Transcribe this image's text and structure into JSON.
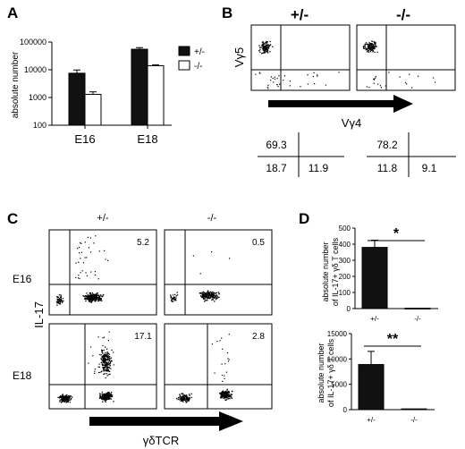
{
  "panels": {
    "a": "A",
    "b": "B",
    "c": "C",
    "d": "D"
  },
  "panel_a": {
    "ylabel": "absolute number",
    "yticks": [
      "100",
      "1000",
      "10000",
      "100000"
    ],
    "legend": [
      "+/-",
      "-/-"
    ]
  },
  "panel_b": {
    "genotypes": [
      "+/-",
      "-/-"
    ],
    "ylabel": "Vγ5",
    "xlabel": "Vγ4",
    "quadrants": [
      {
        "top_left": "69.3",
        "bottom_left": "18.7",
        "bottom_right": "11.9"
      },
      {
        "top_left": "78.2",
        "bottom_left": "11.8",
        "bottom_right": "9.1"
      }
    ]
  },
  "panel_c": {
    "genotypes": [
      "+/-",
      "-/-"
    ],
    "rows": [
      "E16",
      "E18"
    ],
    "ylabel": "IL-17",
    "xlabel": "γδTCR",
    "percentages": [
      [
        "5.2",
        "0.5"
      ],
      [
        "17.1",
        "2.8"
      ]
    ]
  },
  "panel_d": {
    "ylabel_line1": "absolute number",
    "ylabel_line2": "of IL-17+ γδ T cells",
    "top": {
      "yticks": [
        "0",
        "100",
        "200",
        "300",
        "400",
        "500"
      ],
      "signif": "*"
    },
    "bottom": {
      "yticks": [
        "0",
        "5000",
        "10000",
        "15000"
      ],
      "signif": "**"
    },
    "xticks": [
      "+/-",
      "-/-"
    ]
  },
  "colors": {
    "bar_het": "#111111",
    "bar_ko": "#ffffff",
    "axis": "#000000"
  },
  "chart_data": [
    {
      "type": "bar",
      "title": "",
      "categories": [
        "E16",
        "E18"
      ],
      "series": [
        {
          "name": "+/-",
          "values": [
            7500,
            55000
          ]
        },
        {
          "name": "-/-",
          "values": [
            1300,
            14000
          ]
        }
      ],
      "xlabel": "",
      "ylabel": "absolute number",
      "yscale": "log",
      "ylim": [
        100,
        100000
      ],
      "legend": "right"
    },
    {
      "type": "scatter",
      "title": "",
      "panels": [
        "+/-",
        "-/-"
      ],
      "xlabel": "Vγ4",
      "ylabel": "Vγ5",
      "quadrant_percentages": [
        {
          "top_left": 69.3,
          "bottom_left": 18.7,
          "bottom_right": 11.9
        },
        {
          "top_left": 78.2,
          "bottom_left": 11.8,
          "bottom_right": 9.1
        }
      ]
    },
    {
      "type": "scatter",
      "title": "",
      "panels": [
        "+/- E16",
        "-/- E16",
        "+/- E18",
        "-/- E18"
      ],
      "xlabel": "γδTCR",
      "ylabel": "IL-17",
      "gate_percentages": [
        5.2,
        0.5,
        17.1,
        2.8
      ]
    },
    {
      "type": "bar",
      "title": "",
      "categories": [
        "+/-",
        "-/-"
      ],
      "values": [
        380,
        2
      ],
      "errors": [
        45,
        0
      ],
      "ylabel": "absolute number of IL-17+ γδ T cells",
      "ylim": [
        0,
        500
      ],
      "annotation": "*"
    },
    {
      "type": "bar",
      "title": "",
      "categories": [
        "+/-",
        "-/-"
      ],
      "values": [
        8900,
        150
      ],
      "errors": [
        2600,
        0
      ],
      "ylabel": "absolute number of IL-17+ γδ T cells",
      "ylim": [
        0,
        15000
      ],
      "annotation": "**"
    }
  ]
}
